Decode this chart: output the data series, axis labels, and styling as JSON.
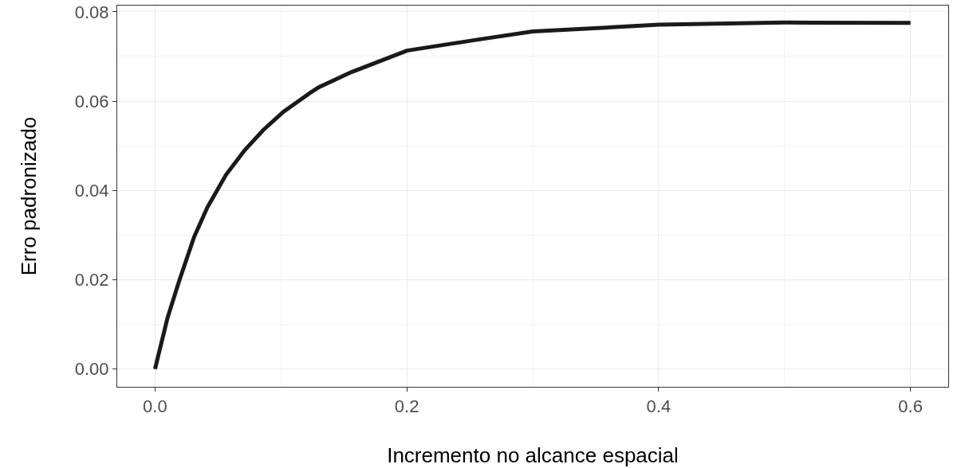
{
  "chart_data": {
    "type": "line",
    "xlabel": "Incremento no alcance espacial",
    "ylabel": "Erro padronizado",
    "x": [
      0,
      0.0099,
      0.0194,
      0.0311,
      0.0416,
      0.0564,
      0.0712,
      0.0859,
      0.102,
      0.124,
      0.13,
      0.156,
      0.2,
      0.257,
      0.3,
      0.4,
      0.5,
      0.6
    ],
    "series": [
      {
        "color": "#1a1a1a",
        "values": [
          0,
          0.0114,
          0.0199,
          0.0296,
          0.0362,
          0.0435,
          0.049,
          0.0535,
          0.0576,
          0.062,
          0.0631,
          0.0665,
          0.0713,
          0.0738,
          0.0756,
          0.0771,
          0.0776,
          0.0775
        ]
      }
    ],
    "xlim": [
      -0.03,
      0.63
    ],
    "ylim": [
      -0.004,
      0.0814
    ],
    "xticks": [
      {
        "value": 0,
        "label": "0.0"
      },
      0.2,
      0.4,
      0.6
    ],
    "yticks": [
      {
        "value": 0,
        "label": "0.00"
      },
      0.02,
      0.04,
      0.06,
      0.08
    ],
    "grid": true,
    "marker": "none",
    "line_style": "solid"
  }
}
